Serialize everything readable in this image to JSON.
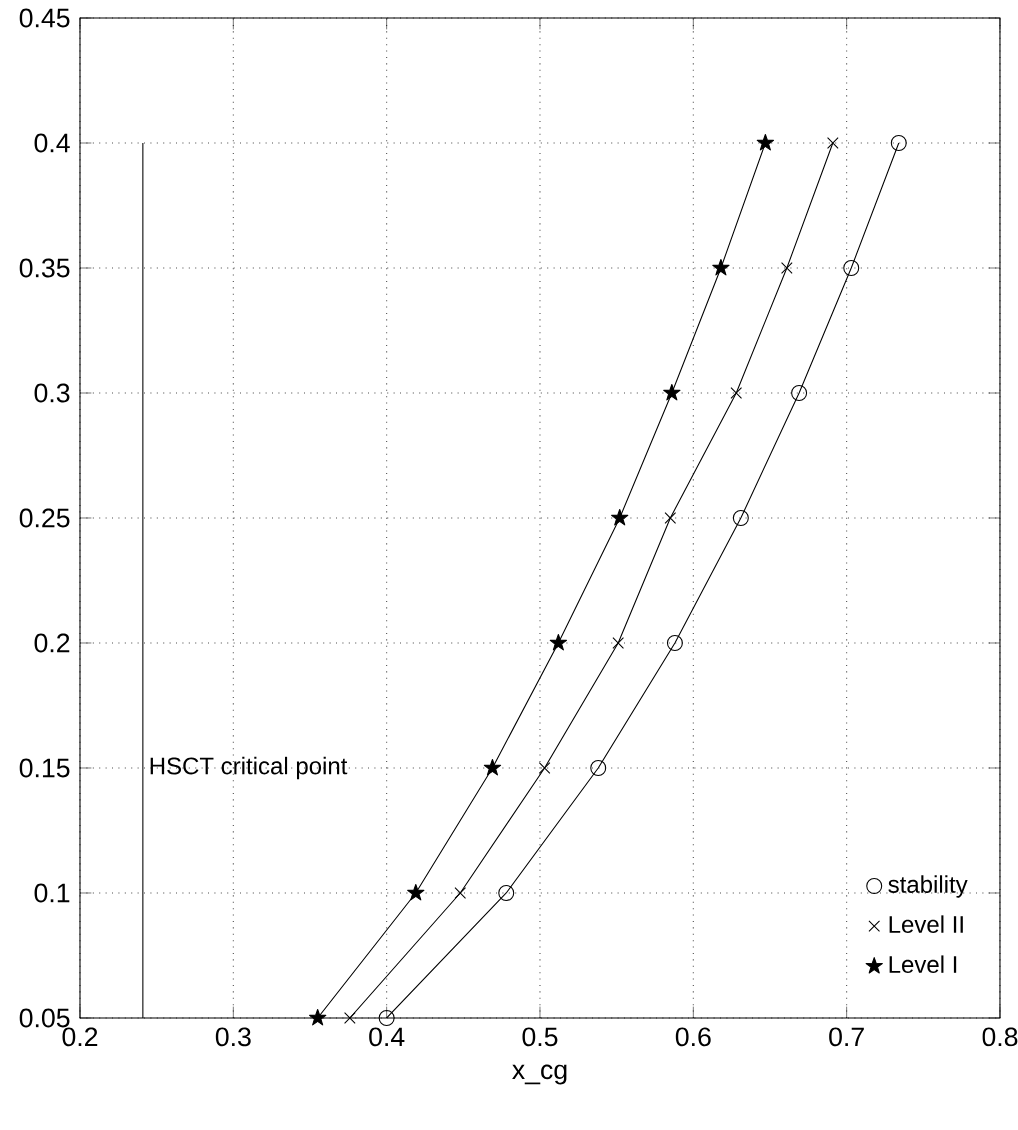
{
  "chart_data": {
    "type": "line",
    "xlabel": "x_cg",
    "xlim": [
      0.2,
      0.8
    ],
    "ylim": [
      0.05,
      0.45
    ],
    "xticks": [
      0.2,
      0.3,
      0.4,
      0.5,
      0.6,
      0.7,
      0.8
    ],
    "yticks": [
      0.05,
      0.1,
      0.15,
      0.2,
      0.25,
      0.3,
      0.35,
      0.4,
      0.45
    ],
    "grid": true,
    "legend": "bottom right",
    "line_style": "solid",
    "series": [
      {
        "name": "stability",
        "color": "#000000",
        "marker": "circle",
        "x": [
          0.4,
          0.478,
          0.538,
          0.588,
          0.631,
          0.669,
          0.703,
          0.734
        ],
        "values": [
          0.05,
          0.1,
          0.15,
          0.2,
          0.25,
          0.3,
          0.35,
          0.4
        ]
      },
      {
        "name": "Level II",
        "color": "#000000",
        "marker": "cross",
        "x": [
          0.376,
          0.448,
          0.503,
          0.551,
          0.585,
          0.628,
          0.661,
          0.691
        ],
        "values": [
          0.05,
          0.1,
          0.15,
          0.2,
          0.25,
          0.3,
          0.35,
          0.4
        ]
      },
      {
        "name": "Level I",
        "color": "#000000",
        "marker": "star",
        "x": [
          0.355,
          0.419,
          0.469,
          0.512,
          0.552,
          0.586,
          0.618,
          0.647
        ],
        "values": [
          0.05,
          0.1,
          0.15,
          0.2,
          0.25,
          0.3,
          0.35,
          0.4
        ]
      },
      {
        "color": "#000000",
        "marker": "none",
        "x": [
          0.241,
          0.241
        ],
        "values": [
          0.05,
          0.4
        ]
      }
    ],
    "annotations": [
      {
        "text": "HSCT critical point",
        "x": 0.241,
        "y": 0.15
      }
    ]
  }
}
